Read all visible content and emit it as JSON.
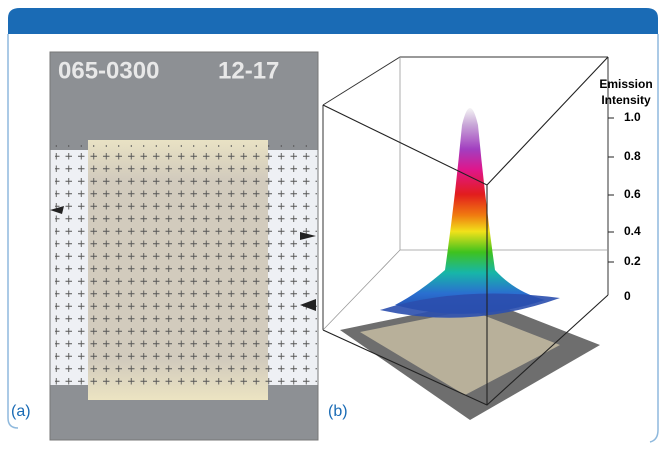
{
  "panels": [
    {
      "label": "(a)",
      "photo_text": [
        "065-0300",
        "12-17"
      ]
    },
    {
      "label": "(b)",
      "axis_title": [
        "Emission",
        "Intensity"
      ],
      "ticks": [
        "1.0",
        "0.8",
        "0.6",
        "0.4",
        "0.2",
        "0"
      ]
    }
  ]
}
